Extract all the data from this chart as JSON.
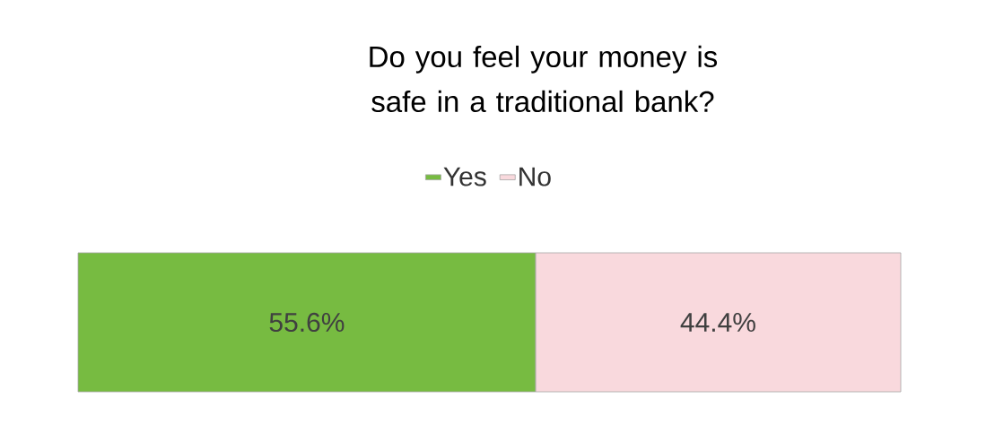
{
  "chart_data": {
    "type": "bar",
    "orientation": "horizontal",
    "stacked": true,
    "title": "Do you feel your money is safe in a traditional bank?",
    "categories": [
      null
    ],
    "series": [
      {
        "name": "Yes",
        "color": "#77bb41",
        "values": [
          55.6
        ],
        "value_labels": [
          "55.6%"
        ]
      },
      {
        "name": "No",
        "color": "#f9d9dd",
        "values": [
          44.4
        ],
        "value_labels": [
          "44.4%"
        ]
      }
    ],
    "legend": "top"
  }
}
